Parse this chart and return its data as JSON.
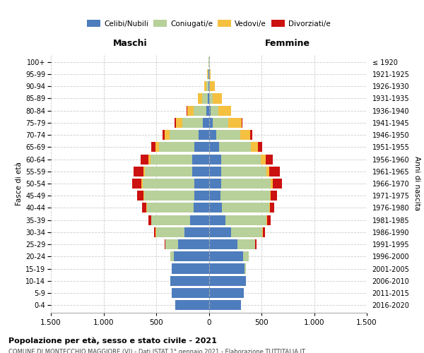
{
  "age_groups": [
    "0-4",
    "5-9",
    "10-14",
    "15-19",
    "20-24",
    "25-29",
    "30-34",
    "35-39",
    "40-44",
    "45-49",
    "50-54",
    "55-59",
    "60-64",
    "65-69",
    "70-74",
    "75-79",
    "80-84",
    "85-89",
    "90-94",
    "95-99",
    "100+"
  ],
  "birth_years": [
    "2016-2020",
    "2011-2015",
    "2006-2010",
    "2001-2005",
    "1996-2000",
    "1991-1995",
    "1986-1990",
    "1981-1985",
    "1976-1980",
    "1971-1975",
    "1966-1970",
    "1961-1965",
    "1956-1960",
    "1951-1955",
    "1946-1950",
    "1941-1945",
    "1936-1940",
    "1931-1935",
    "1926-1930",
    "1921-1925",
    "≤ 1920"
  ],
  "male_celibi": [
    320,
    350,
    365,
    350,
    335,
    290,
    230,
    175,
    145,
    135,
    140,
    155,
    155,
    135,
    100,
    60,
    25,
    10,
    3,
    1,
    0
  ],
  "male_coniugati": [
    0,
    0,
    0,
    5,
    30,
    120,
    270,
    370,
    440,
    480,
    490,
    450,
    400,
    340,
    275,
    195,
    120,
    55,
    20,
    6,
    1
  ],
  "male_vedovi": [
    0,
    0,
    0,
    0,
    0,
    2,
    4,
    5,
    6,
    8,
    12,
    15,
    20,
    30,
    45,
    60,
    60,
    40,
    18,
    7,
    2
  ],
  "male_divorziati": [
    0,
    0,
    0,
    0,
    2,
    8,
    18,
    25,
    40,
    60,
    85,
    95,
    70,
    42,
    20,
    10,
    4,
    2,
    0,
    0,
    0
  ],
  "female_nubili": [
    305,
    335,
    350,
    340,
    325,
    275,
    210,
    160,
    125,
    110,
    115,
    120,
    120,
    100,
    70,
    40,
    15,
    6,
    2,
    1,
    0
  ],
  "female_coniugate": [
    0,
    0,
    0,
    10,
    55,
    165,
    300,
    390,
    450,
    470,
    475,
    430,
    375,
    300,
    230,
    145,
    75,
    32,
    10,
    3,
    1
  ],
  "female_vedove": [
    0,
    0,
    0,
    0,
    0,
    2,
    4,
    6,
    8,
    10,
    18,
    25,
    42,
    65,
    95,
    125,
    120,
    85,
    42,
    16,
    5
  ],
  "female_divorziate": [
    0,
    0,
    0,
    0,
    2,
    10,
    20,
    28,
    38,
    58,
    88,
    100,
    72,
    42,
    18,
    8,
    3,
    1,
    0,
    0,
    0
  ],
  "color_celibi": "#4e7dbe",
  "color_coniugati": "#b8d09a",
  "color_vedovi": "#f5c040",
  "color_divorziati": "#cc1111",
  "xlim": 1500,
  "xtick_labels": [
    "1.500",
    "1.000",
    "500",
    "0",
    "500",
    "1.000",
    "1.500"
  ],
  "xtick_vals": [
    -1500,
    -1000,
    -500,
    0,
    500,
    1000,
    1500
  ],
  "title1": "Popolazione per età, sesso e stato civile - 2021",
  "title2": "COMUNE DI MONTECCHIO MAGGIORE (VI) - Dati ISTAT 1° gennaio 2021 - Elaborazione TUTTITALIA.IT",
  "label_maschi": "Maschi",
  "label_femmine": "Femmine",
  "label_fasce": "Fasce di età",
  "label_anni": "Anni di nascita",
  "leg_celibi": "Celibi/Nubili",
  "leg_coniugati": "Coniugati/e",
  "leg_vedovi": "Vedovi/e",
  "leg_divorziati": "Divorziati/e"
}
